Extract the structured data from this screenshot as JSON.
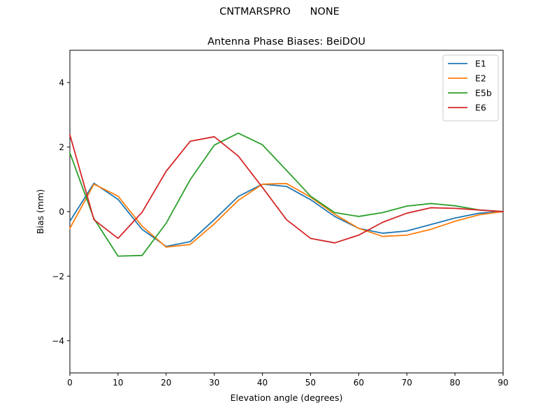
{
  "header": {
    "suptitle": "CNTMARSPRO      NONE"
  },
  "chart_data": {
    "type": "line",
    "title": "Antenna Phase Biases: BeiDOU",
    "xlabel": "Elevation angle (degrees)",
    "ylabel": "Bias (mm)",
    "xlim": [
      0,
      90
    ],
    "ylim": [
      -5,
      5
    ],
    "xticks": [
      0,
      10,
      20,
      30,
      40,
      50,
      60,
      70,
      80,
      90
    ],
    "yticks": [
      -4,
      -2,
      0,
      2,
      4
    ],
    "xtick_labels": [
      "0",
      "10",
      "20",
      "30",
      "40",
      "50",
      "60",
      "70",
      "80",
      "90"
    ],
    "ytick_labels": [
      "−4",
      "−2",
      "0",
      "2",
      "4"
    ],
    "grid": false,
    "legend_position": "top-right",
    "x": [
      0,
      5,
      10,
      15,
      20,
      25,
      30,
      35,
      40,
      45,
      50,
      55,
      60,
      65,
      70,
      75,
      80,
      85,
      90
    ],
    "series": [
      {
        "name": "E1",
        "color": "#1f77b4",
        "values": [
          -0.3,
          0.88,
          0.38,
          -0.55,
          -1.08,
          -0.93,
          -0.25,
          0.47,
          0.85,
          0.78,
          0.37,
          -0.15,
          -0.52,
          -0.67,
          -0.6,
          -0.4,
          -0.2,
          -0.05,
          0.0
        ]
      },
      {
        "name": "E2",
        "color": "#ff7f0e",
        "values": [
          -0.52,
          0.85,
          0.48,
          -0.45,
          -1.1,
          -1.02,
          -0.38,
          0.35,
          0.85,
          0.87,
          0.45,
          -0.08,
          -0.52,
          -0.77,
          -0.73,
          -0.55,
          -0.3,
          -0.1,
          0.0
        ]
      },
      {
        "name": "E5b",
        "color": "#2ca02c",
        "values": [
          1.82,
          -0.22,
          -1.38,
          -1.36,
          -0.36,
          0.99,
          2.06,
          2.43,
          2.07,
          1.28,
          0.48,
          -0.03,
          -0.15,
          -0.03,
          0.17,
          0.25,
          0.18,
          0.05,
          0.0
        ]
      },
      {
        "name": "E6",
        "color": "#d62728",
        "values": [
          2.38,
          -0.25,
          -0.83,
          -0.02,
          1.25,
          2.18,
          2.32,
          1.72,
          0.75,
          -0.25,
          -0.83,
          -0.97,
          -0.73,
          -0.33,
          -0.05,
          0.12,
          0.1,
          0.05,
          0.0
        ]
      }
    ]
  }
}
